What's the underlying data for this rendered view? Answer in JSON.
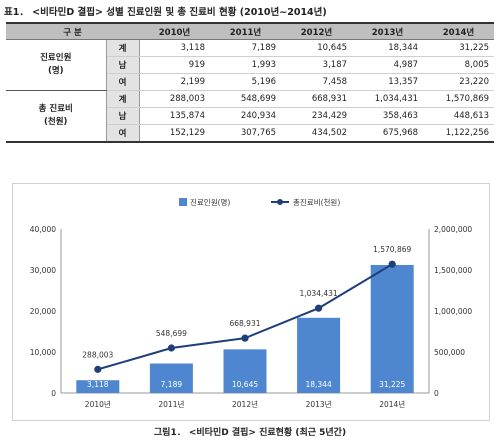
{
  "table": {
    "title": "표1． <비타민D 결핍> 성별 진료인원 및 총 진료비 현황 (2010년~2014년)",
    "header_category": "구 분",
    "years": [
      "2010년",
      "2011년",
      "2012년",
      "2013년",
      "2014년"
    ],
    "groups": [
      {
        "label_line1": "진료인원",
        "label_line2": "(명)",
        "rows": [
          {
            "sub": "계",
            "values": [
              "3,118",
              "7,189",
              "10,645",
              "18,344",
              "31,225"
            ]
          },
          {
            "sub": "남",
            "values": [
              "919",
              "1,993",
              "3,187",
              "4,987",
              "8,005"
            ]
          },
          {
            "sub": "여",
            "values": [
              "2,199",
              "5,196",
              "7,458",
              "13,357",
              "23,220"
            ]
          }
        ]
      },
      {
        "label_line1": "총 진료비",
        "label_line2": "(천원)",
        "rows": [
          {
            "sub": "계",
            "values": [
              "288,003",
              "548,699",
              "668,931",
              "1,034,431",
              "1,570,869"
            ]
          },
          {
            "sub": "남",
            "values": [
              "135,874",
              "240,934",
              "234,429",
              "358,463",
              "448,613"
            ]
          },
          {
            "sub": "여",
            "values": [
              "152,129",
              "307,765",
              "434,502",
              "675,968",
              "1,122,256"
            ]
          }
        ]
      }
    ]
  },
  "chart_data": {
    "type": "bar",
    "categories": [
      "2010년",
      "2011년",
      "2012년",
      "2013년",
      "2014년"
    ],
    "series": [
      {
        "name": "진료인원(명)",
        "kind": "bar",
        "axis": "left",
        "color": "#4f86d0",
        "values": [
          3118,
          7189,
          10645,
          18344,
          31225
        ],
        "labels": [
          "3,118",
          "7,189",
          "10,645",
          "18,344",
          "31,225"
        ]
      },
      {
        "name": "총진료비(천원)",
        "kind": "line",
        "axis": "right",
        "color": "#1f3f78",
        "values": [
          288003,
          548699,
          668931,
          1034431,
          1570869
        ],
        "labels": [
          "288,003",
          "548,699",
          "668,931",
          "1,034,431",
          "1,570,869"
        ]
      }
    ],
    "y_left": {
      "min": 0,
      "max": 40000,
      "ticks": [
        "0",
        "10,000",
        "20,000",
        "30,000",
        "40,000"
      ]
    },
    "y_right": {
      "min": 0,
      "max": 2000000,
      "ticks": [
        "0",
        "500,000",
        "1,000,000",
        "1,500,000",
        "2,000,000"
      ]
    },
    "legend_placement": "top-center",
    "grid": false
  },
  "caption": "그림1． <비타민D 결핍> 진료현황 (최근 5년간)"
}
